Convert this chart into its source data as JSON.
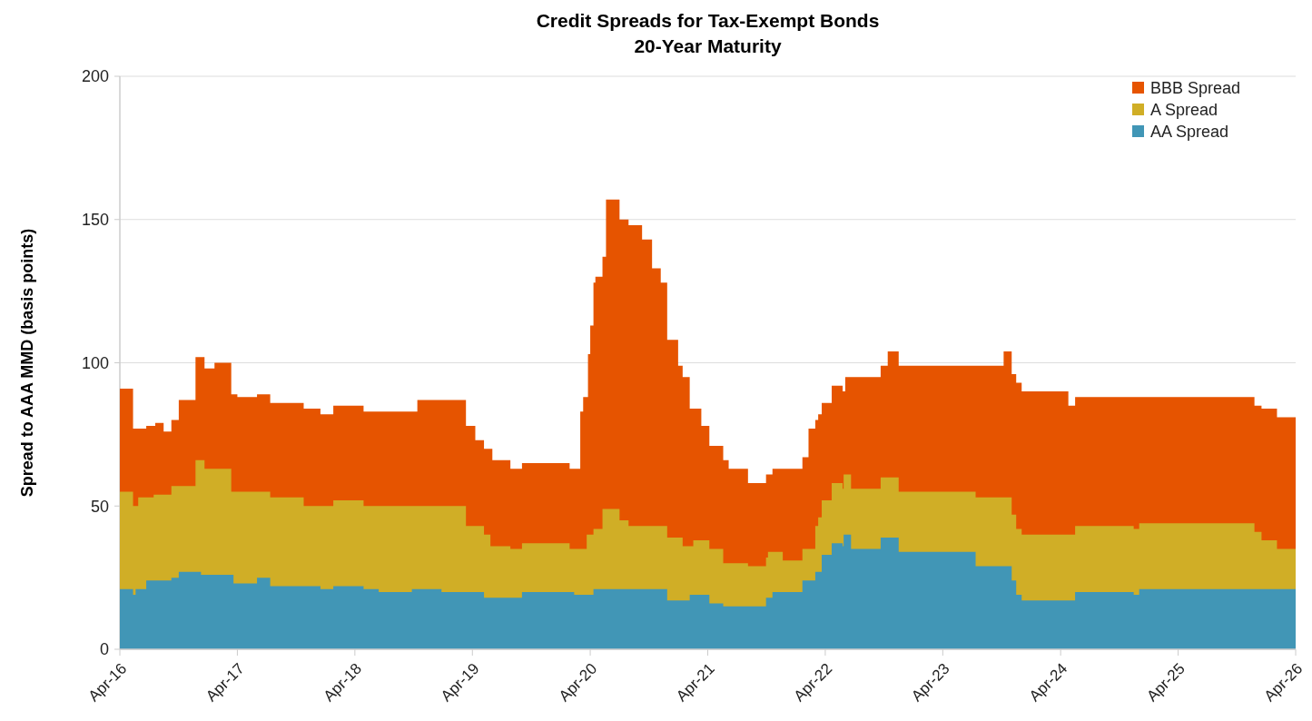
{
  "chart_data": {
    "type": "area",
    "title": "Credit Spreads for Tax-Exempt Bonds",
    "subtitle": "20-Year Maturity",
    "ylabel": "Spread to AAA MMD (basis points)",
    "xlim": [
      "2016-04-01",
      "2026-04-01"
    ],
    "xticks": [
      {
        "value": "2016-04-01",
        "label": "Apr-16"
      },
      {
        "value": "2017-04-01",
        "label": "Apr-17"
      },
      {
        "value": "2018-04-01",
        "label": "Apr-18"
      },
      {
        "value": "2019-04-01",
        "label": "Apr-19"
      },
      {
        "value": "2020-04-01",
        "label": "Apr-20"
      },
      {
        "value": "2021-04-01",
        "label": "Apr-21"
      },
      {
        "value": "2022-04-01",
        "label": "Apr-22"
      },
      {
        "value": "2023-04-01",
        "label": "Apr-23"
      },
      {
        "value": "2024-04-01",
        "label": "Apr-24"
      },
      {
        "value": "2025-04-01",
        "label": "Apr-25"
      },
      {
        "value": "2026-04-01",
        "label": "Apr-26"
      }
    ],
    "ylim": [
      0,
      200
    ],
    "yticks": [
      0,
      50,
      100,
      150,
      200
    ],
    "grid": "y",
    "legend": "top right",
    "series": [
      {
        "name": "BBB Spread",
        "color": "#e65400",
        "x": [
          "2016-04-01",
          "2016-05-12",
          "2016-06-22",
          "2016-07-20",
          "2016-08-15",
          "2016-09-08",
          "2016-10-01",
          "2016-11-22",
          "2016-12-20",
          "2017-01-20",
          "2017-03-13",
          "2017-04-01",
          "2017-06-01",
          "2017-07-12",
          "2017-10-24",
          "2017-12-15",
          "2018-01-24",
          "2018-04-28",
          "2018-10-12",
          "2019-03-12",
          "2019-04-10",
          "2019-05-07",
          "2019-06-02",
          "2019-07-28",
          "2019-09-02",
          "2020-01-28",
          "2020-03-01",
          "2020-03-10",
          "2020-03-25",
          "2020-04-01",
          "2020-04-11",
          "2020-04-17",
          "2020-05-09",
          "2020-05-20",
          "2020-07-01",
          "2020-07-29",
          "2020-09-09",
          "2020-10-10",
          "2020-11-06",
          "2020-11-26",
          "2020-12-30",
          "2021-01-13",
          "2021-02-04",
          "2021-03-12",
          "2021-04-06",
          "2021-05-19",
          "2021-06-05",
          "2021-08-04",
          "2021-09-29",
          "2021-10-19",
          "2022-01-20",
          "2022-02-08",
          "2022-03-01",
          "2022-03-10",
          "2022-03-21",
          "2022-04-21",
          "2022-05-25",
          "2022-06-02",
          "2022-09-20",
          "2022-10-12",
          "2022-11-15",
          "2023-10-07",
          "2023-11-01",
          "2023-11-15",
          "2023-12-02",
          "2024-04-25",
          "2024-05-16",
          "2025-11-24",
          "2025-12-16",
          "2026-02-02",
          "2026-04-01"
        ],
        "values": [
          91,
          77,
          78,
          79,
          76,
          80,
          87,
          102,
          98,
          100,
          89,
          88,
          89,
          86,
          84,
          82,
          85,
          83,
          87,
          78,
          73,
          70,
          66,
          63,
          65,
          63,
          83,
          88,
          103,
          113,
          128,
          130,
          137,
          157,
          150,
          148,
          143,
          133,
          128,
          108,
          99,
          95,
          84,
          78,
          71,
          66,
          63,
          58,
          61,
          63,
          67,
          77,
          80,
          82,
          86,
          92,
          90,
          95,
          99,
          104,
          99,
          104,
          96,
          93,
          90,
          85,
          88,
          85,
          84,
          81,
          81
        ]
      },
      {
        "name": "A Spread",
        "color": "#d0ae26",
        "x": [
          "2016-04-01",
          "2016-05-12",
          "2016-05-28",
          "2016-07-15",
          "2016-09-08",
          "2016-11-22",
          "2016-12-20",
          "2017-03-13",
          "2017-07-12",
          "2017-10-24",
          "2018-01-24",
          "2018-04-28",
          "2019-03-12",
          "2019-05-07",
          "2019-05-27",
          "2019-07-28",
          "2019-09-02",
          "2020-01-28",
          "2020-03-21",
          "2020-04-11",
          "2020-05-09",
          "2020-07-01",
          "2020-07-29",
          "2020-11-26",
          "2021-01-13",
          "2021-02-15",
          "2021-04-06",
          "2021-05-19",
          "2021-08-04",
          "2021-09-29",
          "2021-10-05",
          "2021-11-20",
          "2022-01-20",
          "2022-03-01",
          "2022-03-10",
          "2022-03-21",
          "2022-04-21",
          "2022-05-25",
          "2022-05-28",
          "2022-06-20",
          "2022-09-20",
          "2022-11-15",
          "2023-07-12",
          "2023-11-01",
          "2023-11-15",
          "2023-12-02",
          "2024-05-16",
          "2024-11-14",
          "2024-12-01",
          "2025-11-24",
          "2025-12-16",
          "2026-02-02",
          "2026-04-01"
        ],
        "values": [
          55,
          50,
          53,
          54,
          57,
          66,
          63,
          55,
          53,
          50,
          52,
          50,
          43,
          40,
          36,
          35,
          37,
          35,
          40,
          42,
          49,
          45,
          43,
          39,
          36,
          38,
          35,
          30,
          29,
          32,
          34,
          31,
          35,
          43,
          46,
          52,
          58,
          56,
          61,
          56,
          60,
          55,
          53,
          47,
          42,
          40,
          43,
          42,
          44,
          41,
          38,
          35,
          35
        ]
      },
      {
        "name": "AA Spread",
        "color": "#4196b6",
        "x": [
          "2016-04-01",
          "2016-05-12",
          "2016-05-20",
          "2016-06-22",
          "2016-09-08",
          "2016-10-01",
          "2016-12-09",
          "2017-03-20",
          "2017-06-01",
          "2017-07-12",
          "2017-12-15",
          "2018-01-24",
          "2018-04-28",
          "2018-06-14",
          "2018-09-25",
          "2018-12-26",
          "2019-05-07",
          "2019-09-02",
          "2020-02-11",
          "2020-04-11",
          "2020-11-26",
          "2021-02-04",
          "2021-04-06",
          "2021-05-19",
          "2021-09-29",
          "2021-10-19",
          "2022-01-20",
          "2022-03-01",
          "2022-03-21",
          "2022-04-21",
          "2022-05-25",
          "2022-05-28",
          "2022-06-20",
          "2022-09-20",
          "2022-11-15",
          "2023-07-12",
          "2023-11-01",
          "2023-11-15",
          "2023-12-02",
          "2024-05-16",
          "2024-11-14",
          "2024-12-01",
          "2026-04-01"
        ],
        "values": [
          21,
          19,
          21,
          24,
          25,
          27,
          26,
          23,
          25,
          22,
          21,
          22,
          21,
          20,
          21,
          20,
          18,
          20,
          19,
          21,
          17,
          19,
          16,
          15,
          18,
          20,
          24,
          27,
          33,
          37,
          36,
          40,
          35,
          39,
          34,
          29,
          24,
          19,
          17,
          20,
          19,
          21,
          21
        ]
      }
    ]
  }
}
